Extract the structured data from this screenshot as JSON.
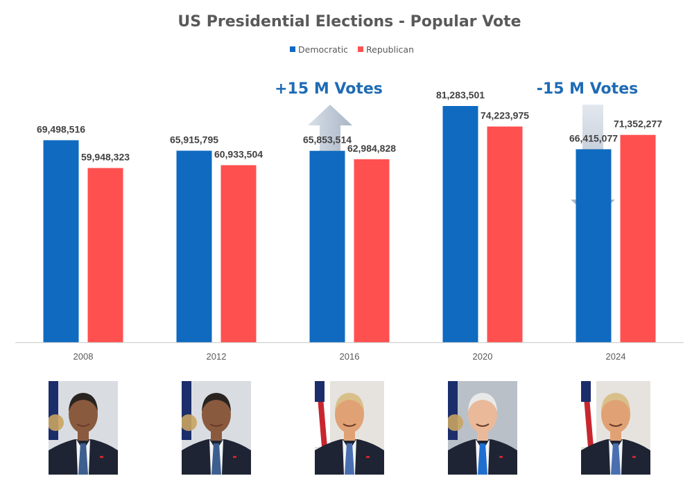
{
  "chart_data": {
    "type": "bar",
    "title": "US Presidential Elections - Popular Vote",
    "xlabel": "",
    "ylabel": "",
    "categories": [
      "2008",
      "2012",
      "2016",
      "2020",
      "2024"
    ],
    "series": [
      {
        "name": "Democratic",
        "color": "#0f6ac0",
        "values": [
          69498516,
          65915795,
          65853514,
          81283501,
          66415077
        ],
        "labels": [
          "69,498,516",
          "65,915,795",
          "65,853,514",
          "81,283,501",
          "66,415,077"
        ]
      },
      {
        "name": "Republican",
        "color": "#ff5050",
        "values": [
          59948323,
          60933504,
          62984828,
          74223975,
          71352277
        ],
        "labels": [
          "59,948,323",
          "60,933,504",
          "62,984,828",
          "74,223,975",
          "71,352,277"
        ]
      }
    ],
    "ylim": [
      0,
      81283501
    ],
    "grid": false,
    "y_axis_visible": false,
    "legend_position": "top-center",
    "annotations": [
      {
        "text": "+15 M Votes",
        "category": "2016",
        "direction": "up",
        "color": "#1f6bb5"
      },
      {
        "text": "-15 M Votes",
        "category": "2024",
        "direction": "down",
        "color": "#1f6bb5"
      }
    ]
  },
  "portraits": [
    {
      "category": "2008",
      "subject": "barack-obama-portrait"
    },
    {
      "category": "2012",
      "subject": "barack-obama-portrait"
    },
    {
      "category": "2016",
      "subject": "donald-trump-portrait"
    },
    {
      "category": "2020",
      "subject": "joe-biden-portrait"
    },
    {
      "category": "2024",
      "subject": "donald-trump-portrait"
    }
  ]
}
